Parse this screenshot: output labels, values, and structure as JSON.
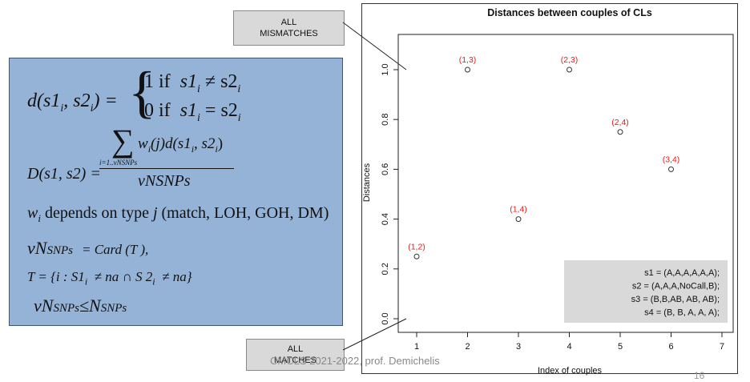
{
  "callouts": {
    "top": [
      "ALL",
      "MISMATCHES"
    ],
    "bottom": [
      "ALL",
      "MATCHES"
    ]
  },
  "formulas": {
    "d_lhs": "d(s1",
    "d_lhs_sub_i": "i",
    "d_lhs_mid": ", s2",
    "d_lhs_end": ") =",
    "case1_value": "1",
    "case1_word": "if",
    "case1_cond": "s1",
    "case1_op": "≠ s2",
    "case0_value": "0",
    "case0_word": "if",
    "case0_cond": "s1",
    "case0_op": "= s2",
    "D_lhs": "D(s1, s2) =",
    "D_numerator": "w",
    "D_numerator_rest": "(j)d(s1",
    "D_numerator_mid": ", s2",
    "D_sum_sub": "i=1..vNSNPs",
    "D_denominator": "vNSNPs",
    "w_line_sym": "w",
    "w_line_sub": "i",
    "w_line_text": "depends  on type",
    "w_line_j": "j",
    "w_line_types": "(match, LOH, GOH, DM)",
    "vn_line_lhs": "vN",
    "vn_line_lhs_small": "SNPs",
    "vn_line_rhs": "=  Card (T ),",
    "t_line": "T  =  {i  :  S1",
    "t_line_sub_i": "i",
    "t_line_mid": "≠  na  ∩  S 2",
    "t_line_sub_i2": "i",
    "t_line_end": "≠  na}",
    "ineq_vN": "vN",
    "ineq_small1": "SNPs",
    "ineq_le": "≤N",
    "ineq_small2": "SNPs"
  },
  "footer_text": "CMCLS 2021-2022, prof. Demichelis",
  "page_number": "16",
  "chart_data": {
    "type": "scatter",
    "title": "Distances between couples of CLs",
    "xlabel": "Index of couples",
    "ylabel": "Distances",
    "xlim": [
      1,
      7
    ],
    "ylim": [
      0,
      1
    ],
    "x_ticks": [
      "1",
      "2",
      "3",
      "4",
      "5",
      "6",
      "7"
    ],
    "y_ticks": [
      "0.0",
      "0.2",
      "0.4",
      "0.6",
      "0.8",
      "1.0"
    ],
    "points": [
      {
        "x": 1,
        "y": 0.25,
        "label": "(1,2)"
      },
      {
        "x": 2,
        "y": 1.0,
        "label": "(1,3)"
      },
      {
        "x": 3,
        "y": 0.4,
        "label": "(1,4)"
      },
      {
        "x": 4,
        "y": 1.0,
        "label": "(2,3)"
      },
      {
        "x": 5,
        "y": 0.75,
        "label": "(2,4)"
      },
      {
        "x": 6,
        "y": 0.6,
        "label": "(3,4)"
      }
    ],
    "grid": false,
    "legend_position": "bottom-right",
    "legend_lines": [
      "s1 = (A,A,A,A,A,A);",
      "s2 = (A,A,A,NoCall,B);",
      "s3 = (B,B,AB, AB, AB);",
      "s4 = (B, B, A, A, A);"
    ],
    "colors": {
      "label": "#e0201c",
      "marker": "#333333",
      "legend_bg": "#d9d9d9"
    }
  }
}
